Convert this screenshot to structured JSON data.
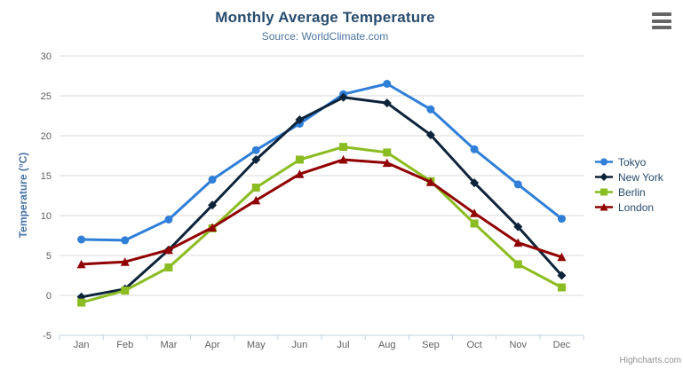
{
  "chart_data": {
    "type": "line",
    "title": "Monthly Average Temperature",
    "subtitle": "Source: WorldClimate.com",
    "categories": [
      "Jan",
      "Feb",
      "Mar",
      "Apr",
      "May",
      "Jun",
      "Jul",
      "Aug",
      "Sep",
      "Oct",
      "Nov",
      "Dec"
    ],
    "xlabel": "",
    "ylabel": "Temperature (°C)",
    "ylim": [
      -5,
      30
    ],
    "yticks": [
      -5,
      0,
      5,
      10,
      15,
      20,
      25,
      30
    ],
    "grid": true,
    "legend_position": "right",
    "series": [
      {
        "name": "Tokyo",
        "color": "#2f7ed8",
        "marker": "circle",
        "values": [
          7.0,
          6.9,
          9.5,
          14.5,
          18.2,
          21.5,
          25.2,
          26.5,
          23.3,
          18.3,
          13.9,
          9.6
        ]
      },
      {
        "name": "New York",
        "color": "#0d233a",
        "marker": "diamond",
        "values": [
          -0.2,
          0.8,
          5.7,
          11.3,
          17.0,
          22.0,
          24.8,
          24.1,
          20.1,
          14.1,
          8.6,
          2.5
        ]
      },
      {
        "name": "Berlin",
        "color": "#8bbc21",
        "marker": "square",
        "values": [
          -0.9,
          0.6,
          3.5,
          8.4,
          13.5,
          17.0,
          18.6,
          17.9,
          14.3,
          9.0,
          3.9,
          1.0
        ]
      },
      {
        "name": "London",
        "color": "#910000",
        "marker": "triangle",
        "values": [
          3.9,
          4.2,
          5.7,
          8.5,
          11.9,
          15.2,
          17.0,
          16.6,
          14.2,
          10.3,
          6.6,
          4.8
        ]
      }
    ],
    "style_colors": {
      "title": "#274b6d",
      "subtitle": "#4d759e",
      "yaxis_title": "#4572a7",
      "axis_labels": "#606060",
      "grid_line": "#d8d8d8",
      "axis_line": "#c0d0e0",
      "legend_text": "#274b6d",
      "menu_icon": "#666666",
      "credits_text": "#909090"
    }
  },
  "export_menu": {
    "tooltip": "Chart context menu"
  },
  "credits": {
    "label": "Highcharts.com"
  }
}
